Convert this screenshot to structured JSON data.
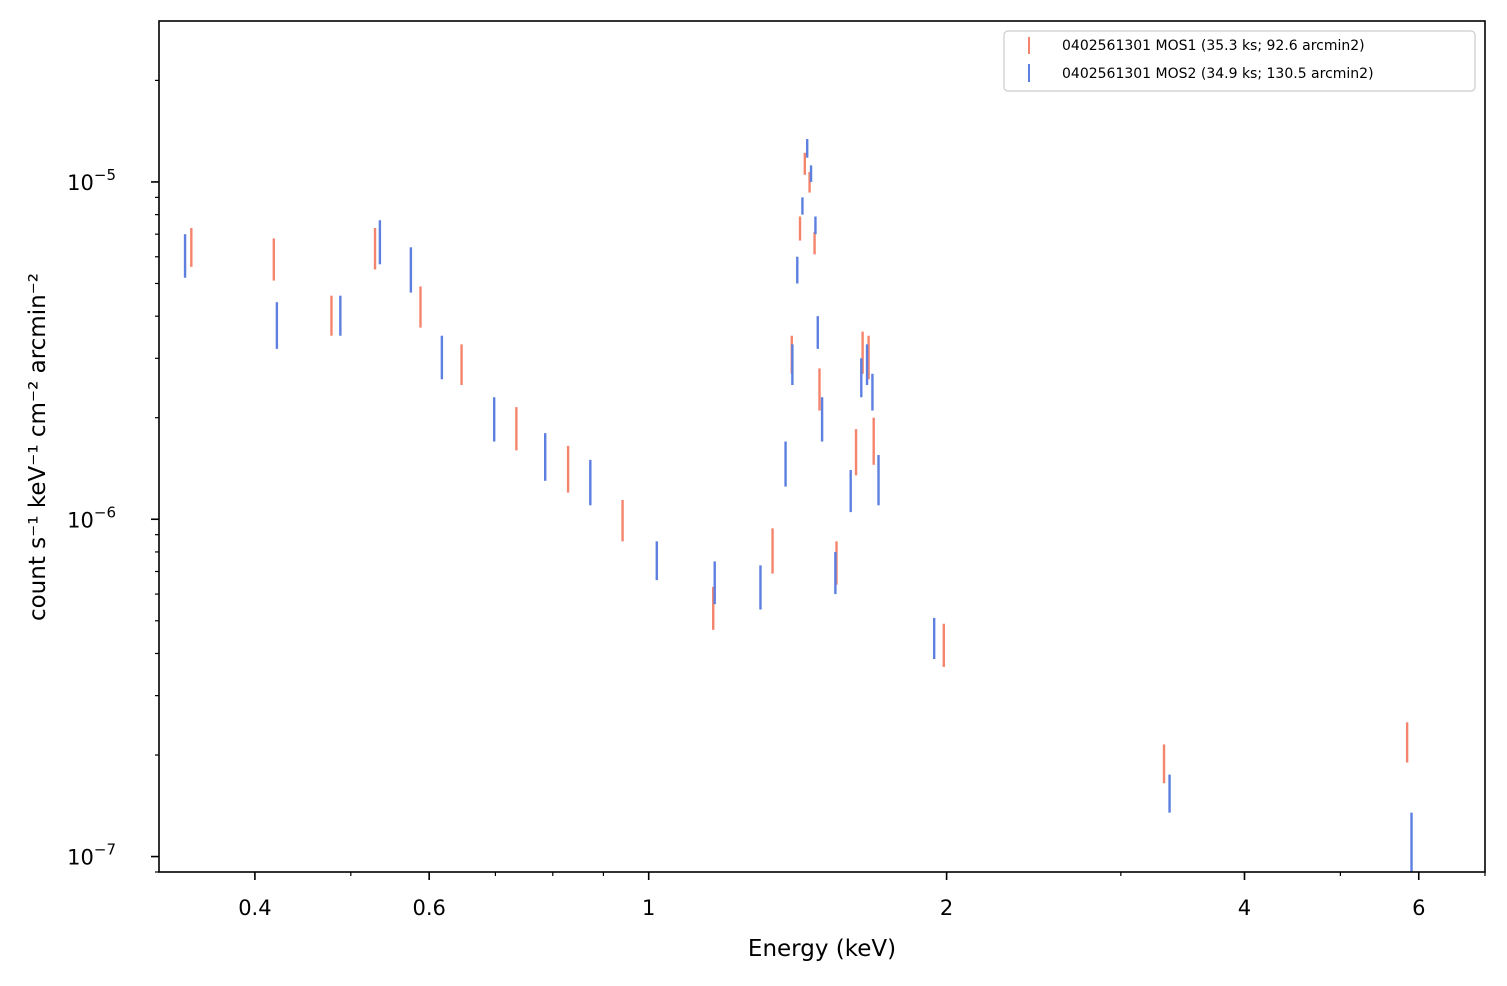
{
  "chart_data": {
    "type": "scatter",
    "xlabel": "Energy (keV)",
    "ylabel": "count s⁻¹ keV⁻¹ cm⁻² arcmin⁻²",
    "xscale": "log",
    "yscale": "log",
    "xlim": [
      0.32,
      7.0
    ],
    "ylim": [
      9e-08,
      3e-05
    ],
    "grid": false,
    "legend_position": "top-right",
    "x_ticks": [
      {
        "value": 0.4,
        "label": "0.4"
      },
      {
        "value": 0.6,
        "label": "0.6"
      },
      {
        "value": 1,
        "label": "1"
      },
      {
        "value": 2,
        "label": "2"
      },
      {
        "value": 4,
        "label": "4"
      },
      {
        "value": 6,
        "label": "6"
      }
    ],
    "y_ticks": [
      {
        "value": 1e-07,
        "base": "10",
        "exp": "−7"
      },
      {
        "value": 1e-06,
        "base": "10",
        "exp": "−6"
      },
      {
        "value": 1e-05,
        "base": "10",
        "exp": "−5"
      }
    ],
    "series": [
      {
        "name": "0402561301 MOS1 (35.3 ks; 92.6 arcmin2)",
        "color": "#f4846c",
        "points": [
          {
            "x": 0.345,
            "ylo": 5.6e-06,
            "yhi": 7.3e-06
          },
          {
            "x": 0.418,
            "ylo": 5.1e-06,
            "yhi": 6.8e-06
          },
          {
            "x": 0.478,
            "ylo": 3.5e-06,
            "yhi": 4.6e-06
          },
          {
            "x": 0.529,
            "ylo": 5.5e-06,
            "yhi": 7.3e-06
          },
          {
            "x": 0.588,
            "ylo": 3.7e-06,
            "yhi": 4.9e-06
          },
          {
            "x": 0.647,
            "ylo": 2.5e-06,
            "yhi": 3.3e-06
          },
          {
            "x": 0.735,
            "ylo": 1.6e-06,
            "yhi": 2.15e-06
          },
          {
            "x": 0.829,
            "ylo": 1.2e-06,
            "yhi": 1.65e-06
          },
          {
            "x": 0.941,
            "ylo": 8.6e-07,
            "yhi": 1.14e-06
          },
          {
            "x": 1.162,
            "ylo": 4.7e-07,
            "yhi": 6.3e-07
          },
          {
            "x": 1.334,
            "ylo": 6.9e-07,
            "yhi": 9.4e-07
          },
          {
            "x": 1.395,
            "ylo": 2.7e-06,
            "yhi": 3.5e-06
          },
          {
            "x": 1.422,
            "ylo": 6.7e-06,
            "yhi": 7.9e-06
          },
          {
            "x": 1.438,
            "ylo": 1.05e-05,
            "yhi": 1.22e-05
          },
          {
            "x": 1.454,
            "ylo": 9.3e-06,
            "yhi": 1.07e-05
          },
          {
            "x": 1.471,
            "ylo": 6.1e-06,
            "yhi": 7.1e-06
          },
          {
            "x": 1.488,
            "ylo": 2.1e-06,
            "yhi": 2.8e-06
          },
          {
            "x": 1.548,
            "ylo": 6.4e-07,
            "yhi": 8.6e-07
          },
          {
            "x": 1.62,
            "ylo": 1.35e-06,
            "yhi": 1.85e-06
          },
          {
            "x": 1.645,
            "ylo": 2.7e-06,
            "yhi": 3.6e-06
          },
          {
            "x": 1.668,
            "ylo": 2.6e-06,
            "yhi": 3.5e-06
          },
          {
            "x": 1.688,
            "ylo": 1.45e-06,
            "yhi": 2e-06
          },
          {
            "x": 1.987,
            "ylo": 3.65e-07,
            "yhi": 4.9e-07
          },
          {
            "x": 3.317,
            "ylo": 1.65e-07,
            "yhi": 2.15e-07
          },
          {
            "x": 5.84,
            "ylo": 1.9e-07,
            "yhi": 2.5e-07
          }
        ]
      },
      {
        "name": "0402561301 MOS2 (34.9 ks; 130.5 arcmin2)",
        "color": "#5c7fe0",
        "points": [
          {
            "x": 0.34,
            "ylo": 5.2e-06,
            "yhi": 7e-06
          },
          {
            "x": 0.421,
            "ylo": 3.2e-06,
            "yhi": 4.4e-06
          },
          {
            "x": 0.488,
            "ylo": 3.5e-06,
            "yhi": 4.6e-06
          },
          {
            "x": 0.535,
            "ylo": 5.7e-06,
            "yhi": 7.7e-06
          },
          {
            "x": 0.575,
            "ylo": 4.7e-06,
            "yhi": 6.4e-06
          },
          {
            "x": 0.618,
            "ylo": 2.6e-06,
            "yhi": 3.5e-06
          },
          {
            "x": 0.698,
            "ylo": 1.7e-06,
            "yhi": 2.3e-06
          },
          {
            "x": 0.786,
            "ylo": 1.3e-06,
            "yhi": 1.8e-06
          },
          {
            "x": 0.873,
            "ylo": 1.1e-06,
            "yhi": 1.5e-06
          },
          {
            "x": 1.019,
            "ylo": 6.6e-07,
            "yhi": 8.6e-07
          },
          {
            "x": 1.166,
            "ylo": 5.6e-07,
            "yhi": 7.5e-07
          },
          {
            "x": 1.297,
            "ylo": 5.4e-07,
            "yhi": 7.3e-07
          },
          {
            "x": 1.375,
            "ylo": 1.25e-06,
            "yhi": 1.7e-06
          },
          {
            "x": 1.397,
            "ylo": 2.5e-06,
            "yhi": 3.3e-06
          },
          {
            "x": 1.413,
            "ylo": 5e-06,
            "yhi": 6e-06
          },
          {
            "x": 1.43,
            "ylo": 8e-06,
            "yhi": 9e-06
          },
          {
            "x": 1.446,
            "ylo": 1.18e-05,
            "yhi": 1.34e-05
          },
          {
            "x": 1.459,
            "ylo": 1e-05,
            "yhi": 1.12e-05
          },
          {
            "x": 1.474,
            "ylo": 7e-06,
            "yhi": 7.9e-06
          },
          {
            "x": 1.482,
            "ylo": 3.2e-06,
            "yhi": 4e-06
          },
          {
            "x": 1.497,
            "ylo": 1.7e-06,
            "yhi": 2.3e-06
          },
          {
            "x": 1.544,
            "ylo": 6e-07,
            "yhi": 8e-07
          },
          {
            "x": 1.6,
            "ylo": 1.05e-06,
            "yhi": 1.4e-06
          },
          {
            "x": 1.64,
            "ylo": 2.3e-06,
            "yhi": 3e-06
          },
          {
            "x": 1.662,
            "ylo": 2.5e-06,
            "yhi": 3.3e-06
          },
          {
            "x": 1.683,
            "ylo": 2.1e-06,
            "yhi": 2.7e-06
          },
          {
            "x": 1.707,
            "ylo": 1.1e-06,
            "yhi": 1.55e-06
          },
          {
            "x": 1.943,
            "ylo": 3.85e-07,
            "yhi": 5.1e-07
          },
          {
            "x": 3.36,
            "ylo": 1.35e-07,
            "yhi": 1.75e-07
          },
          {
            "x": 5.9,
            "ylo": 8.5e-08,
            "yhi": 1.35e-07
          }
        ]
      }
    ]
  }
}
